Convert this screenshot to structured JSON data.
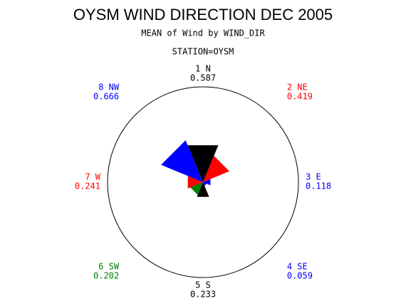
{
  "chart_data": {
    "type": "windrose",
    "title": "OYSM WIND DIRECTION DEC 2005",
    "subtitle": "MEAN of Wind by WIND_DIR",
    "station": "STATION=OYSM",
    "categories": [
      "1 N",
      "2 NE",
      "3 E",
      "4 SE",
      "5 S",
      "6 SW",
      "7 W",
      "8 NW"
    ],
    "values": [
      0.587,
      0.419,
      0.118,
      0.059,
      0.233,
      0.202,
      0.241,
      0.666
    ],
    "colors": [
      "#000000",
      "#ff0000",
      "#0000ff",
      "#0000ff",
      "#000000",
      "#008000",
      "#ff0000",
      "#0000ff"
    ],
    "rlim": [
      0,
      1.4
    ]
  }
}
